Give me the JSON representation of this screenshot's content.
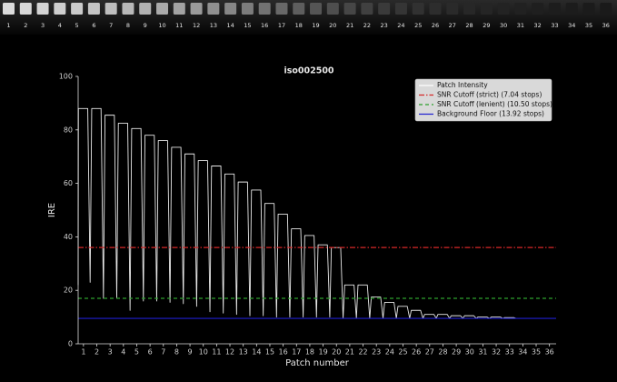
{
  "patch_strip": {
    "labels": [
      "1",
      "2",
      "3",
      "4",
      "5",
      "6",
      "7",
      "8",
      "9",
      "10",
      "11",
      "12",
      "13",
      "14",
      "15",
      "16",
      "17",
      "18",
      "19",
      "20",
      "21",
      "22",
      "23",
      "24",
      "25",
      "26",
      "27",
      "28",
      "29",
      "30",
      "31",
      "32",
      "33",
      "34",
      "35",
      "36"
    ],
    "colors": [
      "#dcdcdc",
      "#d8d8d8",
      "#d4d4d4",
      "#cfcfcf",
      "#cacaca",
      "#c4c4c4",
      "#bebebe",
      "#b8b8b8",
      "#b2b2b2",
      "#aaaaaa",
      "#a2a2a2",
      "#9a9a9a",
      "#909090",
      "#868686",
      "#7c7c7c",
      "#727272",
      "#686868",
      "#5e5e5e",
      "#555555",
      "#4e4e4e",
      "#464646",
      "#404040",
      "#3a3a3a",
      "#353535",
      "#313131",
      "#2d2d2d",
      "#2a2a2a",
      "#272727",
      "#252525",
      "#232323",
      "#212121",
      "#1f1f1f",
      "#1d1d1d",
      "#1c1c1c",
      "#1b1b1b",
      "#1a1a1a"
    ]
  },
  "chart_data": {
    "type": "line",
    "title": "iso002500",
    "xlabel": "Patch number",
    "ylabel": "IRE",
    "xlim": [
      0.6,
      36.5
    ],
    "ylim": [
      0,
      100
    ],
    "xticks": [
      1,
      2,
      3,
      4,
      5,
      6,
      7,
      8,
      9,
      10,
      11,
      12,
      13,
      14,
      15,
      16,
      17,
      18,
      19,
      20,
      21,
      22,
      23,
      24,
      25,
      26,
      27,
      28,
      29,
      30,
      31,
      32,
      33,
      34,
      35,
      36
    ],
    "yticks": [
      0,
      20,
      40,
      60,
      80,
      100
    ],
    "legend": "upper right",
    "series": [
      {
        "name": "Patch Intensity",
        "color": "#e8e8e8",
        "x": [
          0.6,
          0.62,
          1.32,
          1.5,
          1.62,
          2.32,
          2.5,
          2.62,
          3.32,
          3.5,
          3.62,
          4.32,
          4.5,
          4.62,
          5.32,
          5.5,
          5.62,
          6.32,
          6.5,
          6.62,
          7.32,
          7.5,
          7.62,
          8.32,
          8.5,
          8.62,
          9.32,
          9.5,
          9.62,
          10.32,
          10.5,
          10.62,
          11.32,
          11.5,
          11.62,
          12.32,
          12.5,
          12.62,
          13.32,
          13.5,
          13.62,
          14.32,
          14.5,
          14.62,
          15.32,
          15.5,
          15.62,
          16.32,
          16.5,
          16.62,
          17.32,
          17.5,
          17.62,
          18.32,
          18.5,
          18.62,
          19.32,
          19.5,
          19.62,
          20.32,
          20.5,
          20.62,
          21.32,
          21.5,
          21.62,
          22.32,
          22.5,
          22.62,
          23.32,
          23.5,
          23.62,
          24.32,
          24.5,
          24.62,
          25.32,
          25.5,
          25.62,
          26.32,
          26.5,
          26.62,
          27.32,
          27.5,
          27.62,
          28.32,
          28.5,
          28.62,
          29.32,
          29.5,
          29.62,
          30.32,
          30.5,
          30.62,
          31.32,
          31.5,
          31.62,
          32.32,
          32.5,
          32.62,
          33.32,
          33.5,
          33.62,
          34.32,
          34.5,
          34.62,
          35.32,
          35.5,
          35.62,
          36.45
        ],
        "values": [
          22,
          88,
          88,
          23,
          88,
          88,
          17,
          85.5,
          85.5,
          17,
          82.5,
          82.5,
          12.5,
          80.5,
          80.5,
          16,
          78,
          78,
          16,
          76,
          76,
          15.5,
          73.5,
          73.5,
          15,
          71,
          71,
          14,
          68.5,
          68.5,
          12,
          66.5,
          66.5,
          11.5,
          63.5,
          63.5,
          11,
          60.5,
          60.5,
          10.5,
          57.5,
          57.5,
          10.5,
          52.5,
          52.5,
          10,
          48.5,
          48.5,
          10,
          43,
          43,
          10,
          40.5,
          40.5,
          10,
          37,
          37,
          10,
          36,
          36,
          9.5,
          22,
          22,
          9.5,
          22,
          22,
          9.5,
          17.5,
          17.5,
          9.5,
          15.5,
          15.5,
          9.5,
          14,
          14,
          9.5,
          12.5,
          12.5,
          9.5,
          11,
          11,
          9.5,
          11,
          11,
          9.5,
          10.5,
          10.5,
          9.5,
          10.5,
          10.5,
          9.5,
          10,
          10,
          9.5,
          10,
          10,
          9.5,
          9.8,
          9.8,
          9.5,
          9.5,
          9.5,
          9.5,
          9.5,
          9.5,
          9.5,
          9.5,
          9.5
        ]
      }
    ],
    "lines": [
      {
        "name": "SNR Cutoff (strict) (7.04 stops)",
        "color": "#d62728",
        "style": "dashdot",
        "value": 36
      },
      {
        "name": "SNR Cutoff (lenient) (10.50 stops)",
        "color": "#2ca02c",
        "style": "dashed",
        "value": 17
      },
      {
        "name": "Background Floor (13.92 stops)",
        "color": "#1f1fd0",
        "style": "solid",
        "value": 9.5
      }
    ]
  }
}
